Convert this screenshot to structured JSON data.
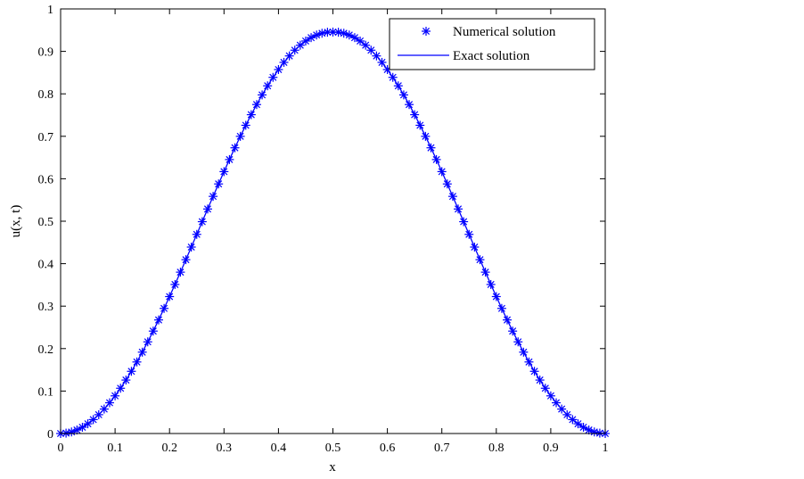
{
  "chart_data": {
    "type": "line",
    "xlabel": "x",
    "ylabel": "u(x, t)",
    "xlim": [
      0,
      1
    ],
    "ylim": [
      0,
      1
    ],
    "xticks": [
      "0",
      "0.1",
      "0.2",
      "0.3",
      "0.4",
      "0.5",
      "0.6",
      "0.7",
      "0.8",
      "0.9",
      "1"
    ],
    "yticks": [
      "0",
      "0.1",
      "0.2",
      "0.3",
      "0.4",
      "0.5",
      "0.6",
      "0.7",
      "0.8",
      "0.9",
      "1"
    ],
    "grid": false,
    "legend_position": "top-right",
    "series_color": "#0000ff",
    "x": [
      0,
      0.01,
      0.02,
      0.03,
      0.04,
      0.05,
      0.06,
      0.07,
      0.08,
      0.09,
      0.1,
      0.11,
      0.12,
      0.13,
      0.14,
      0.15,
      0.16,
      0.17,
      0.18,
      0.19,
      0.2,
      0.21,
      0.22,
      0.23,
      0.24,
      0.25,
      0.26,
      0.27,
      0.28,
      0.29,
      0.3,
      0.31,
      0.32,
      0.33,
      0.34,
      0.35,
      0.36,
      0.37,
      0.38,
      0.39,
      0.4,
      0.41,
      0.42,
      0.43,
      0.44,
      0.45,
      0.46,
      0.47,
      0.48,
      0.49,
      0.5,
      0.51,
      0.52,
      0.53,
      0.54,
      0.55,
      0.56,
      0.57,
      0.58,
      0.59,
      0.6,
      0.61,
      0.62,
      0.63,
      0.64,
      0.65,
      0.66,
      0.67,
      0.68,
      0.69,
      0.7,
      0.71,
      0.72,
      0.73,
      0.74,
      0.75,
      0.76,
      0.77,
      0.78,
      0.79,
      0.8,
      0.81,
      0.82,
      0.83,
      0.84,
      0.85,
      0.86,
      0.87,
      0.88,
      0.89,
      0.9,
      0.91,
      0.92,
      0.93,
      0.94,
      0.95,
      0.96,
      0.97,
      0.98,
      0.99,
      1
    ],
    "series": [
      {
        "name": "Numerical solution",
        "style": "markers-asterisk",
        "values": [
          0,
          0.0009,
          0.0037,
          0.0083,
          0.0147,
          0.0229,
          0.0328,
          0.0443,
          0.0576,
          0.0724,
          0.0887,
          0.1066,
          0.1259,
          0.1465,
          0.1685,
          0.1916,
          0.2159,
          0.2412,
          0.2675,
          0.2946,
          0.3225,
          0.351,
          0.38,
          0.4094,
          0.4391,
          0.469,
          0.4989,
          0.5288,
          0.5585,
          0.5878,
          0.6168,
          0.6452,
          0.6729,
          0.6999,
          0.7259,
          0.7509,
          0.7748,
          0.7975,
          0.8189,
          0.8388,
          0.8572,
          0.8741,
          0.8893,
          0.9028,
          0.9145,
          0.9244,
          0.9324,
          0.9385,
          0.9427,
          0.9451,
          0.9455,
          0.9451,
          0.9427,
          0.9385,
          0.9324,
          0.9244,
          0.9145,
          0.9028,
          0.8893,
          0.8741,
          0.8572,
          0.8388,
          0.8189,
          0.7975,
          0.7748,
          0.7509,
          0.7259,
          0.6999,
          0.6729,
          0.6452,
          0.6168,
          0.5878,
          0.5585,
          0.5288,
          0.4989,
          0.469,
          0.4391,
          0.4094,
          0.38,
          0.351,
          0.3225,
          0.2946,
          0.2675,
          0.2412,
          0.2159,
          0.1916,
          0.1685,
          0.1465,
          0.1259,
          0.1066,
          0.0887,
          0.0724,
          0.0576,
          0.0443,
          0.0328,
          0.0229,
          0.0147,
          0.0083,
          0.0037,
          0.0009,
          0
        ]
      },
      {
        "name": "Exact solution",
        "style": "solid-line",
        "values": [
          0,
          0.0009,
          0.0037,
          0.0083,
          0.0147,
          0.0229,
          0.0328,
          0.0443,
          0.0576,
          0.0724,
          0.0887,
          0.1066,
          0.1259,
          0.1465,
          0.1685,
          0.1916,
          0.2159,
          0.2412,
          0.2675,
          0.2946,
          0.3225,
          0.351,
          0.38,
          0.4094,
          0.4391,
          0.469,
          0.4989,
          0.5288,
          0.5585,
          0.5878,
          0.6168,
          0.6452,
          0.6729,
          0.6999,
          0.7259,
          0.7509,
          0.7748,
          0.7975,
          0.8189,
          0.8388,
          0.8572,
          0.8741,
          0.8893,
          0.9028,
          0.9145,
          0.9244,
          0.9324,
          0.9385,
          0.9427,
          0.9451,
          0.9455,
          0.9451,
          0.9427,
          0.9385,
          0.9324,
          0.9244,
          0.9145,
          0.9028,
          0.8893,
          0.8741,
          0.8572,
          0.8388,
          0.8189,
          0.7975,
          0.7748,
          0.7509,
          0.7259,
          0.6999,
          0.6729,
          0.6452,
          0.6168,
          0.5878,
          0.5585,
          0.5288,
          0.4989,
          0.469,
          0.4391,
          0.4094,
          0.38,
          0.351,
          0.3225,
          0.2946,
          0.2675,
          0.2412,
          0.2159,
          0.1916,
          0.1685,
          0.1465,
          0.1259,
          0.1066,
          0.0887,
          0.0724,
          0.0576,
          0.0443,
          0.0328,
          0.0229,
          0.0147,
          0.0083,
          0.0037,
          0.0009,
          0
        ]
      }
    ]
  }
}
